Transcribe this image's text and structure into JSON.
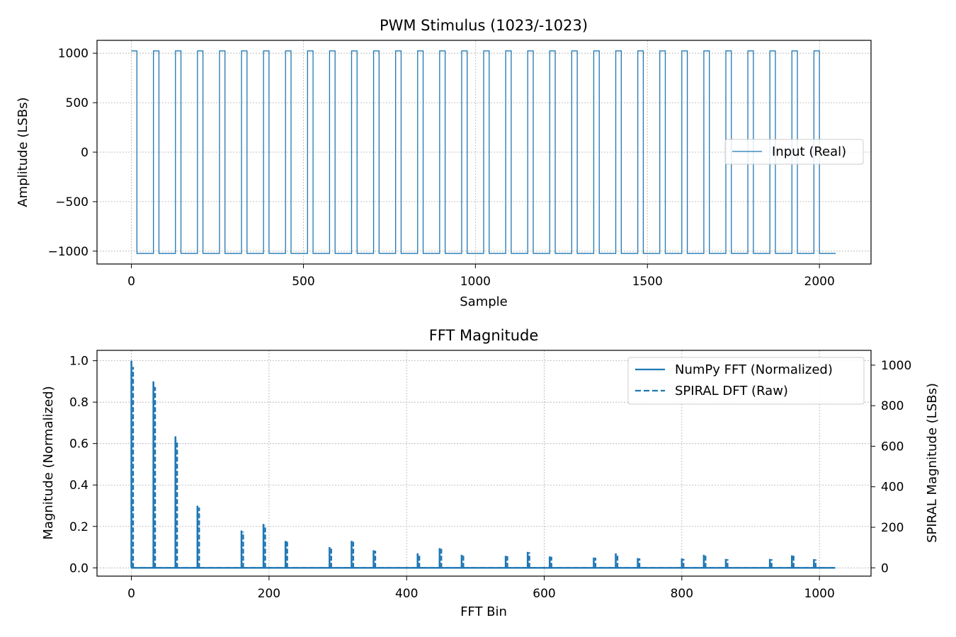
{
  "chart_data": [
    {
      "type": "line",
      "title": "PWM Stimulus (1023/-1023)",
      "xlabel": "Sample",
      "ylabel": "Amplitude (LSBs)",
      "xlim": [
        -100,
        2150
      ],
      "ylim": [
        -1130,
        1130
      ],
      "xticks": [
        0,
        500,
        1000,
        1500,
        2000
      ],
      "xtick_labels": [
        "0",
        "500",
        "1000",
        "1500",
        "2000"
      ],
      "yticks": [
        1000,
        500,
        0,
        -500,
        -1000
      ],
      "ytick_labels": [
        "1000",
        "500",
        "0",
        "−500",
        "−1000"
      ],
      "grid": true,
      "legend_position": "center-right",
      "color": "#1f77b4",
      "series": [
        {
          "name": "Input (Real)",
          "style": "solid",
          "period": 64,
          "high_samples": 16,
          "high": 1023,
          "low": -1023,
          "x_range": [
            0,
            2047
          ]
        }
      ]
    },
    {
      "type": "line",
      "title": "FFT Magnitude",
      "xlabel": "FFT Bin",
      "ylabel": "Magnitude (Normalized)",
      "ylabel_right": "SPIRAL Magnitude (LSBs)",
      "xlim": [
        -50,
        1075
      ],
      "ylim": [
        -0.04,
        1.05
      ],
      "ylim_right": [
        -41,
        1073
      ],
      "xticks": [
        0,
        200,
        400,
        600,
        800,
        1000
      ],
      "xtick_labels": [
        "0",
        "200",
        "400",
        "600",
        "800",
        "1000"
      ],
      "yticks": [
        1.0,
        0.8,
        0.6,
        0.4,
        0.2,
        0.0
      ],
      "ytick_labels": [
        "1.0",
        "0.8",
        "0.6",
        "0.4",
        "0.2",
        "0.0"
      ],
      "yticks_right": [
        1000,
        800,
        600,
        400,
        200,
        0
      ],
      "ytick_labels_right": [
        "1000",
        "800",
        "600",
        "400",
        "200",
        "0"
      ],
      "grid": true,
      "legend_position": "top-right",
      "color": "#1f77b4",
      "series": [
        {
          "name": "NumPy FFT (Normalized)",
          "style": "solid"
        },
        {
          "name": "SPIRAL DFT (Raw)",
          "style": "dashed"
        }
      ],
      "peaks": [
        {
          "bin": 0,
          "value": 1.0
        },
        {
          "bin": 32,
          "value": 0.9
        },
        {
          "bin": 64,
          "value": 0.635
        },
        {
          "bin": 96,
          "value": 0.3
        },
        {
          "bin": 160,
          "value": 0.18
        },
        {
          "bin": 192,
          "value": 0.212
        },
        {
          "bin": 224,
          "value": 0.13
        },
        {
          "bin": 288,
          "value": 0.1
        },
        {
          "bin": 320,
          "value": 0.13
        },
        {
          "bin": 352,
          "value": 0.085
        },
        {
          "bin": 416,
          "value": 0.07
        },
        {
          "bin": 448,
          "value": 0.095
        },
        {
          "bin": 480,
          "value": 0.063
        },
        {
          "bin": 544,
          "value": 0.058
        },
        {
          "bin": 576,
          "value": 0.077
        },
        {
          "bin": 608,
          "value": 0.055
        },
        {
          "bin": 672,
          "value": 0.05
        },
        {
          "bin": 704,
          "value": 0.07
        },
        {
          "bin": 736,
          "value": 0.047
        },
        {
          "bin": 800,
          "value": 0.045
        },
        {
          "bin": 832,
          "value": 0.063
        },
        {
          "bin": 864,
          "value": 0.043
        },
        {
          "bin": 928,
          "value": 0.043
        },
        {
          "bin": 960,
          "value": 0.06
        },
        {
          "bin": 992,
          "value": 0.042
        }
      ],
      "x_range": [
        0,
        1023
      ]
    }
  ]
}
